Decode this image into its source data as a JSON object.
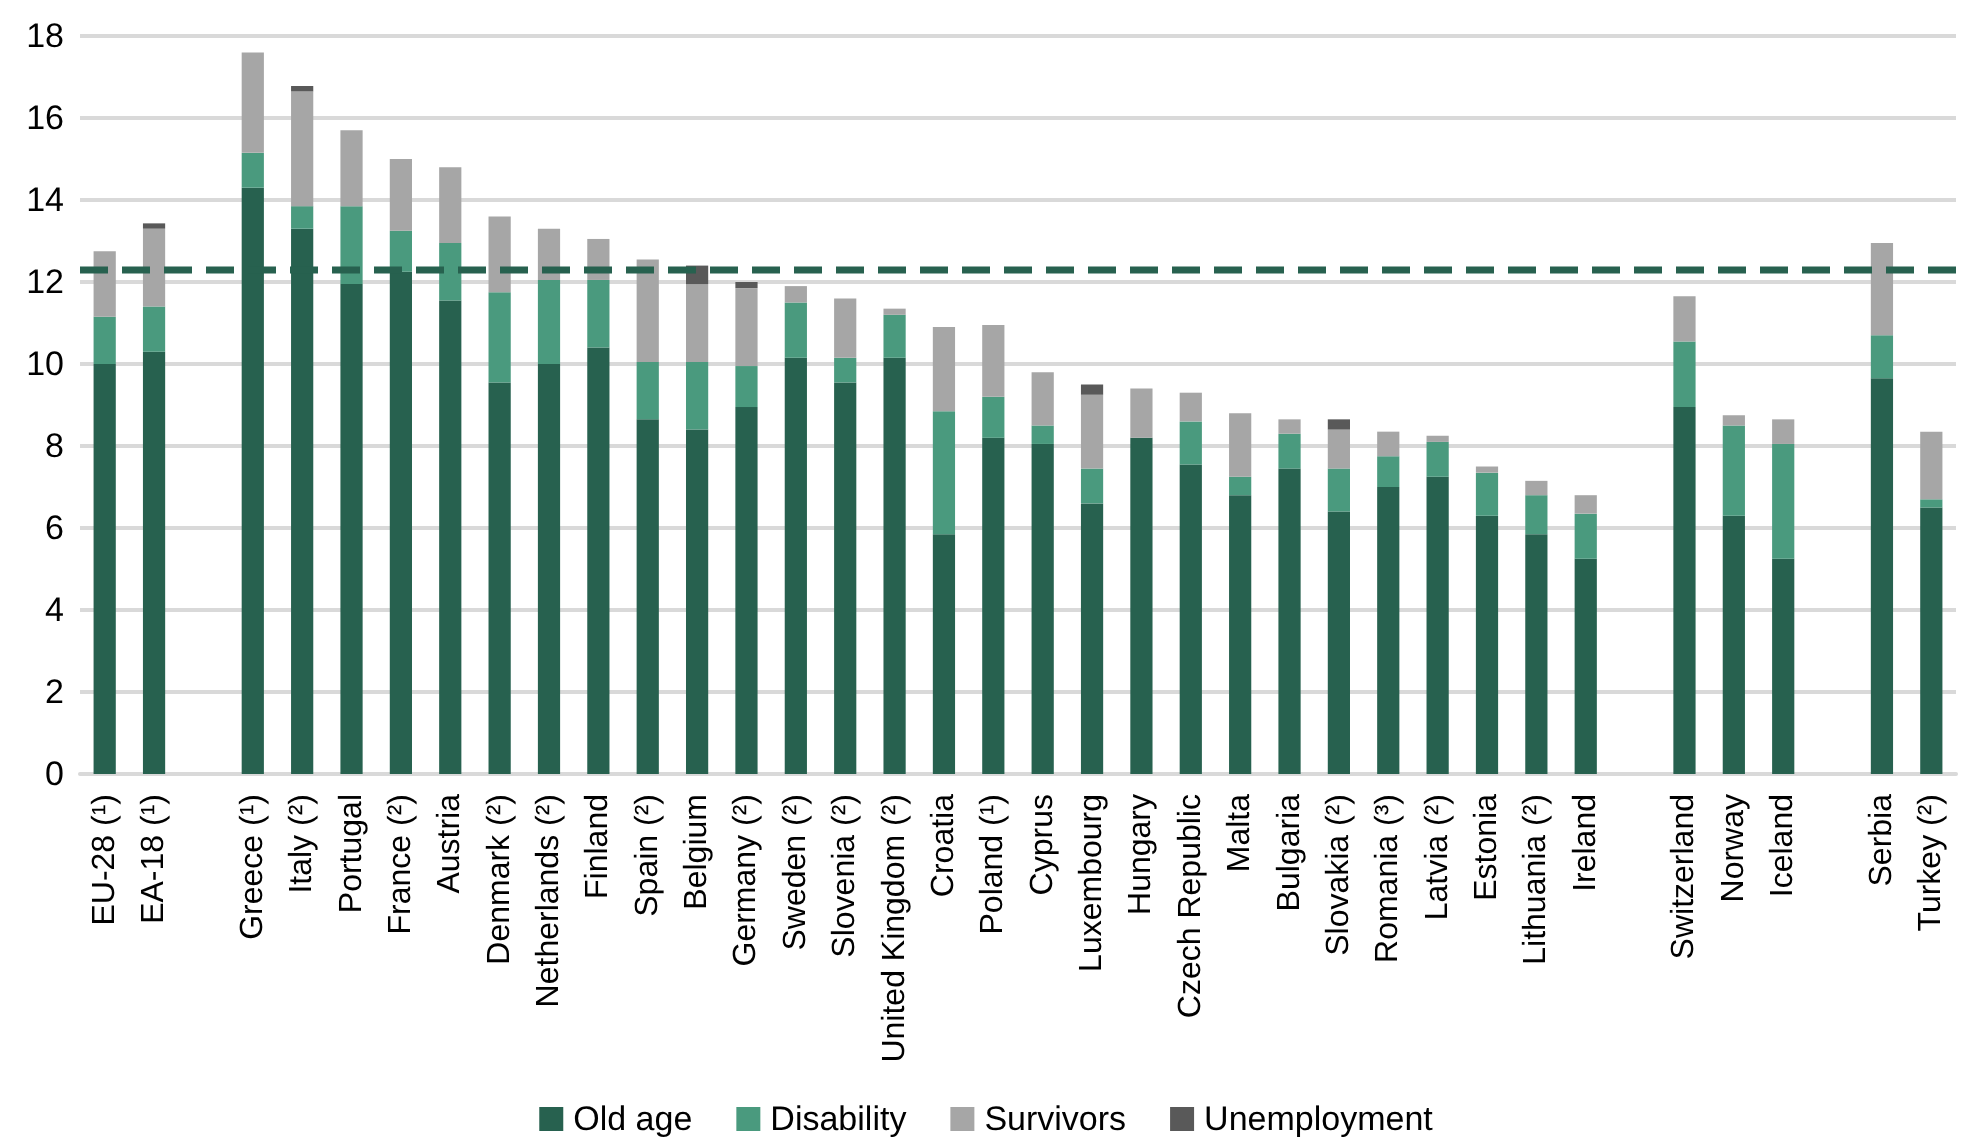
{
  "chart_data": {
    "type": "bar",
    "stacked": true,
    "categories": [
      "EU-28 (¹)",
      "EA-18 (¹)",
      null,
      "Greece (¹)",
      "Italy (²)",
      "Portugal",
      "France (²)",
      "Austria",
      "Denmark (²)",
      "Netherlands (²)",
      "Finland",
      "Spain (²)",
      "Belgium",
      "Germany (²)",
      "Sweden (²)",
      "Slovenia (²)",
      "United Kingdom (²)",
      "Croatia",
      "Poland (¹)",
      "Cyprus",
      "Luxembourg",
      "Hungary",
      "Czech Republic",
      "Malta",
      "Bulgaria",
      "Slovakia (²)",
      "Romania (³)",
      "Latvia (²)",
      "Estonia",
      "Lithuania (²)",
      "Ireland",
      null,
      "Switzerland",
      "Norway",
      "Iceland",
      null,
      "Serbia",
      "Turkey (²)"
    ],
    "series": [
      {
        "name": "Old age",
        "color": "#27614f",
        "values": [
          10.0,
          10.3,
          null,
          14.3,
          13.3,
          11.95,
          12.25,
          11.55,
          9.55,
          10.0,
          10.4,
          8.65,
          8.4,
          8.95,
          10.15,
          9.55,
          10.15,
          5.85,
          8.2,
          8.05,
          6.6,
          8.2,
          7.55,
          6.8,
          7.45,
          6.4,
          7.0,
          7.25,
          6.3,
          5.85,
          5.25,
          null,
          8.95,
          6.3,
          5.25,
          null,
          9.65,
          6.5
        ]
      },
      {
        "name": "Disability",
        "color": "#4a9a7e",
        "values": [
          1.15,
          1.1,
          null,
          0.85,
          0.55,
          1.9,
          1.0,
          1.4,
          2.2,
          2.05,
          1.65,
          1.4,
          1.65,
          1.0,
          1.35,
          0.6,
          1.05,
          3.0,
          1.0,
          0.45,
          0.85,
          0,
          1.05,
          0.45,
          0.85,
          1.05,
          0.75,
          0.85,
          1.05,
          0.95,
          1.1,
          null,
          1.6,
          2.2,
          2.8,
          null,
          1.05,
          0.2
        ]
      },
      {
        "name": "Survivors",
        "color": "#a6a6a6",
        "values": [
          1.6,
          1.9,
          null,
          2.45,
          2.8,
          1.85,
          1.75,
          1.85,
          1.85,
          1.25,
          1.0,
          2.5,
          1.9,
          1.9,
          0.4,
          1.45,
          0.15,
          2.05,
          1.75,
          1.3,
          1.8,
          1.2,
          0.7,
          1.55,
          0.35,
          0.95,
          0.6,
          0.15,
          0.15,
          0.35,
          0.45,
          null,
          1.1,
          0.25,
          0.6,
          null,
          2.25,
          1.65
        ]
      },
      {
        "name": "Unemployment",
        "color": "#595959",
        "values": [
          0,
          0.13,
          null,
          0,
          0.13,
          0,
          0,
          0,
          0,
          0,
          0,
          0,
          0.45,
          0.15,
          0,
          0,
          0,
          0,
          0,
          0,
          0.25,
          0,
          0,
          0,
          0,
          0.25,
          0,
          0,
          0,
          0,
          0,
          null,
          0,
          0,
          0,
          null,
          0,
          0
        ]
      }
    ],
    "ylim": [
      0,
      18
    ],
    "yticks": [
      0,
      2,
      4,
      6,
      8,
      10,
      12,
      14,
      16,
      18
    ],
    "grid": "y",
    "legend": "bottom",
    "ref_lines": [
      {
        "axis": "y",
        "value": 12.3,
        "color": "#27614f",
        "line_style": "dashed"
      }
    ]
  }
}
